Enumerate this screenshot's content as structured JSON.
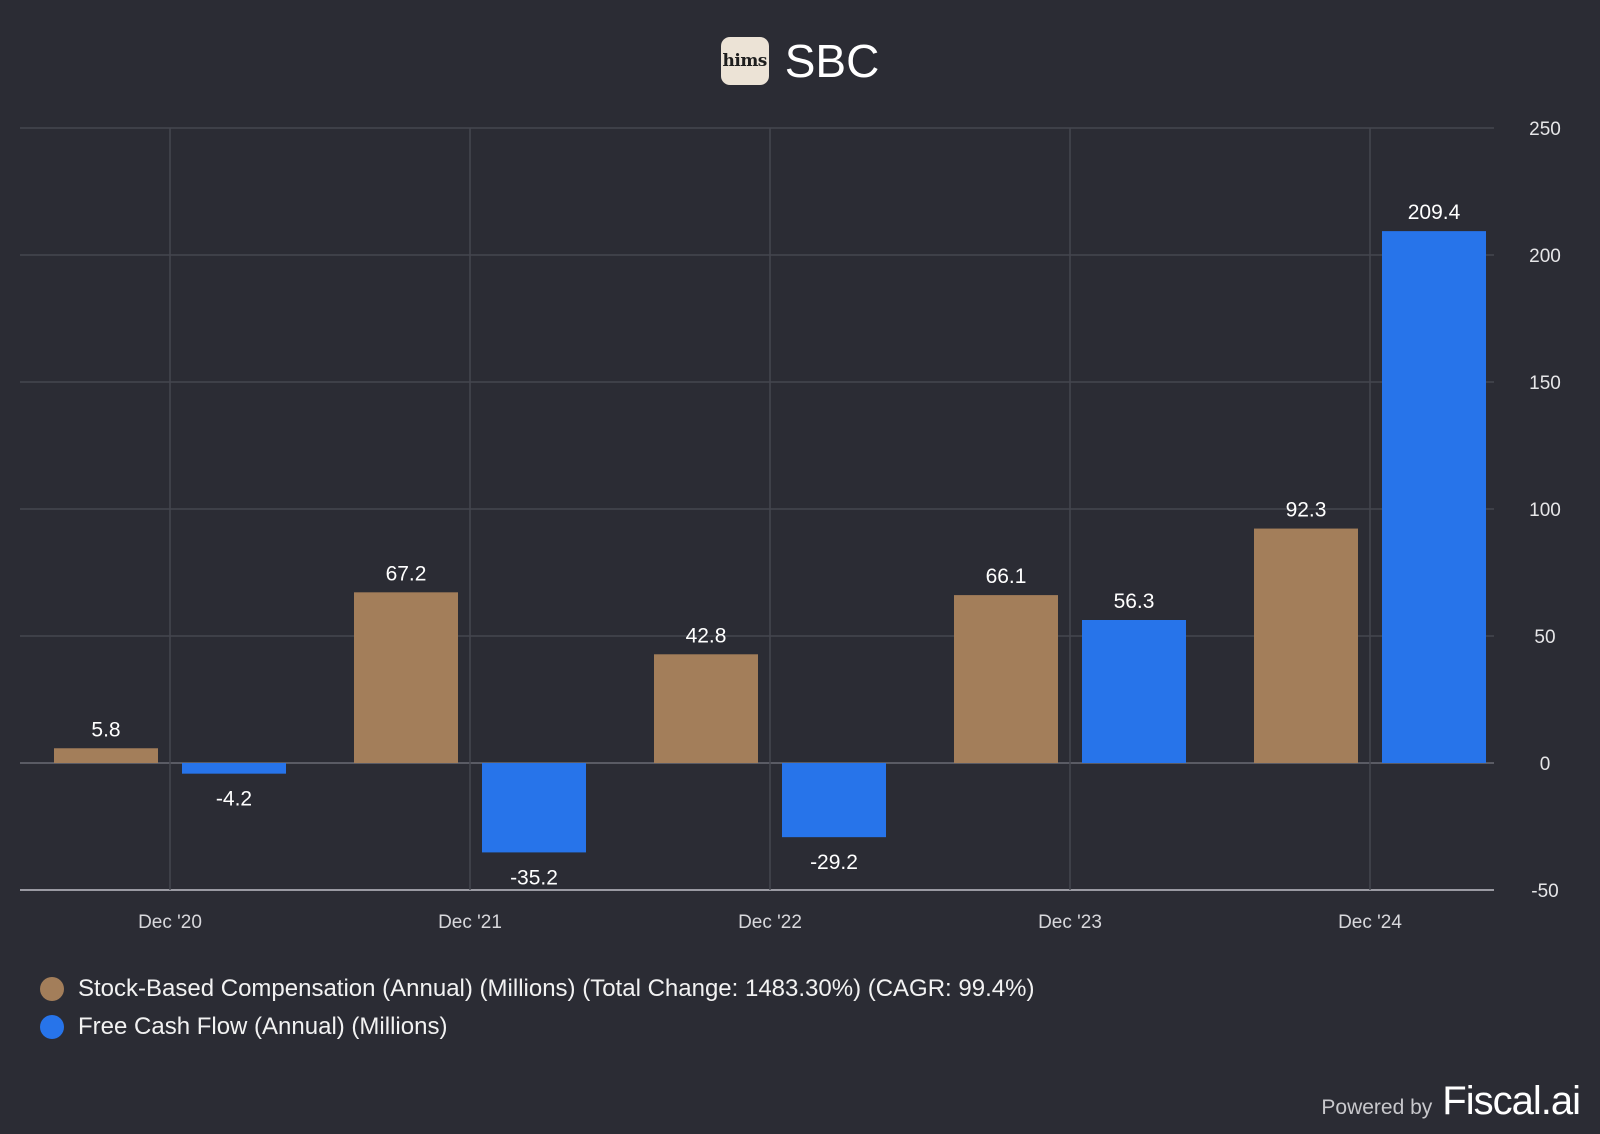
{
  "header": {
    "logo_text": "hims",
    "title": "SBC"
  },
  "chart_data": {
    "type": "bar",
    "categories": [
      "Dec '20",
      "Dec '21",
      "Dec '22",
      "Dec '23",
      "Dec '24"
    ],
    "series": [
      {
        "name": "Stock-Based Compensation (Annual) (Millions) (Total Change: 1483.30%) (CAGR: 99.4%)",
        "color": "#a37e5a",
        "values": [
          5.8,
          67.2,
          42.8,
          66.1,
          92.3
        ]
      },
      {
        "name": "Free Cash Flow (Annual) (Millions)",
        "color": "#2774ea",
        "values": [
          -4.2,
          -35.2,
          -29.2,
          56.3,
          209.4
        ]
      }
    ],
    "y_ticks": [
      250,
      200,
      150,
      100,
      50,
      0,
      -50
    ],
    "ylim": [
      -50,
      250
    ],
    "grid": true,
    "y_axis_side": "right",
    "legend_position": "bottom-left"
  },
  "footer": {
    "powered_by": "Powered by",
    "brand": "Fiscal.ai"
  }
}
